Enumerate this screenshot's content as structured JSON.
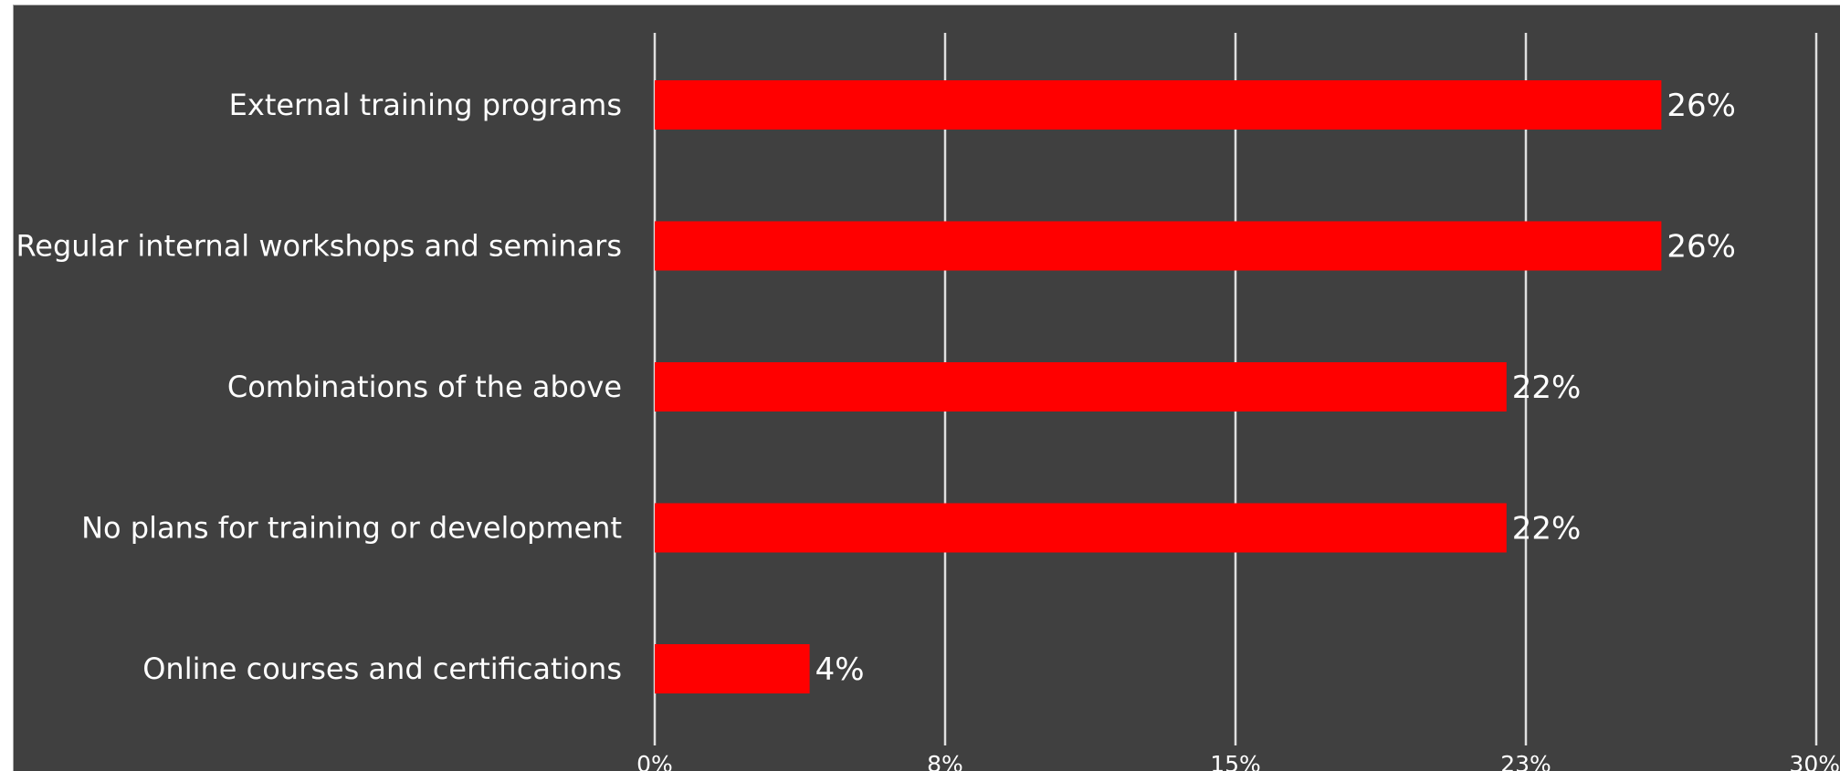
{
  "chart_data": {
    "type": "bar",
    "orientation": "horizontal",
    "categories": [
      "External training programs",
      "Regular internal workshops and seminars",
      "Combinations of the above",
      "No plans for training or development",
      "Online courses and certifications"
    ],
    "values": [
      26,
      26,
      22,
      22,
      4
    ],
    "value_labels": [
      "26%",
      "26%",
      "22%",
      "22%",
      "4%"
    ],
    "xlim": [
      0,
      30
    ],
    "x_ticks": [
      0,
      7.5,
      15,
      22.5,
      30
    ],
    "x_tick_labels": [
      "0%",
      "8%",
      "15%",
      "23%",
      "30%"
    ],
    "grid": true,
    "legend": "none",
    "bar_color": "#ff0000",
    "background_color": "#404040",
    "title": "",
    "xlabel": "",
    "ylabel": ""
  }
}
